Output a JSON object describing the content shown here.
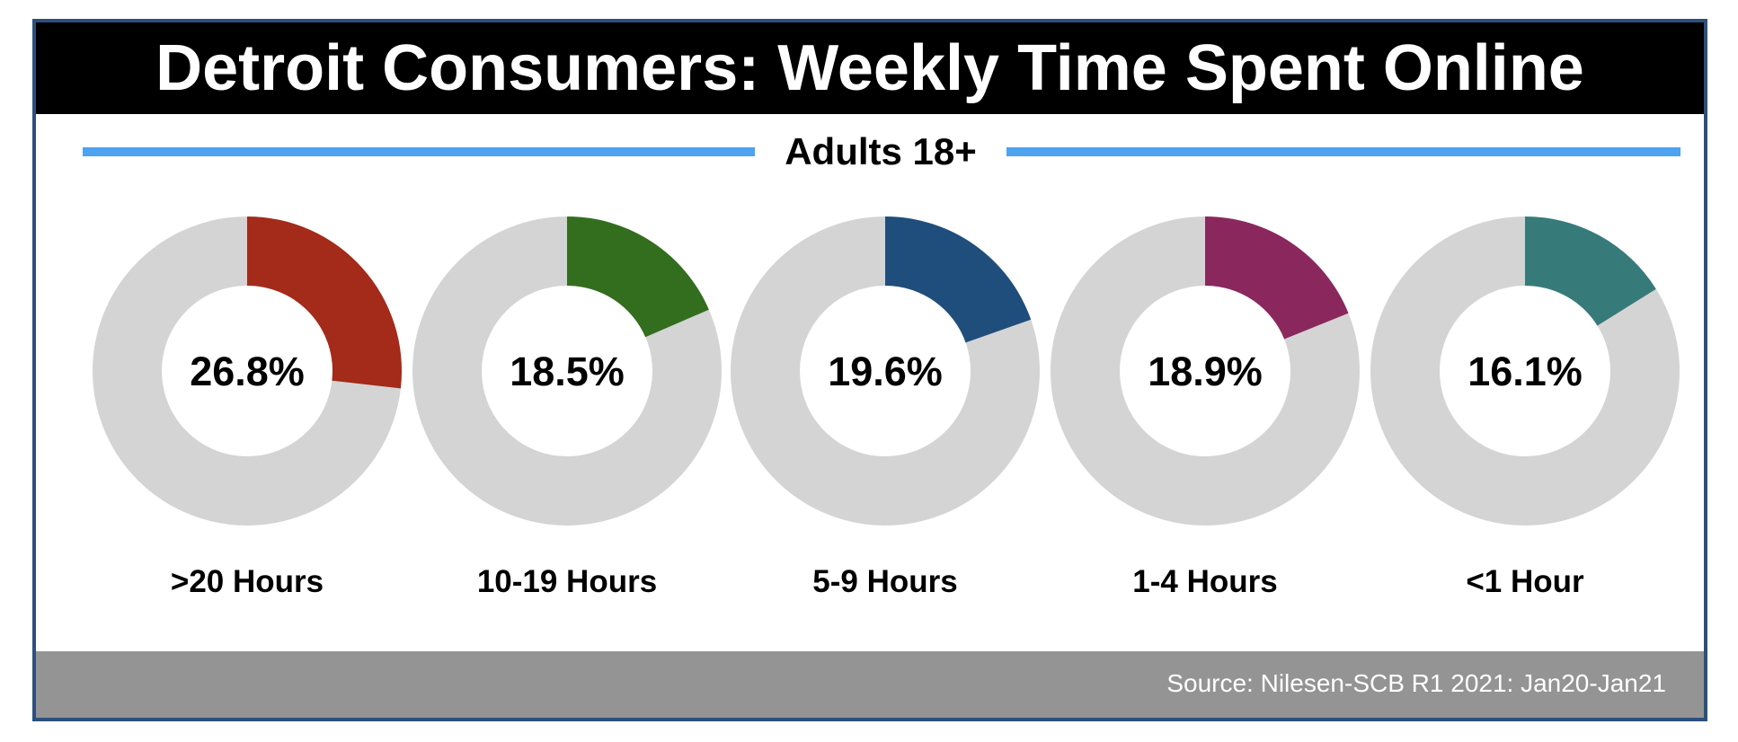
{
  "title": "Detroit Consumers: Weekly Time Spent Online",
  "subtitle": "Adults 18+",
  "source": "Source: Nilesen-SCB R1 2021: Jan20-Jan21",
  "colors": {
    "title_bg": "#000000",
    "accent_line": "#4da3ef",
    "donut_track": "#d4d4d4",
    "footer_bg": "#949494",
    "frame_border": "#2d4f7c"
  },
  "chart_data": {
    "type": "pie",
    "style": "donut",
    "title": "Detroit Consumers: Weekly Time Spent Online",
    "subtitle": "Adults 18+",
    "categories": [
      ">20 Hours",
      "10-19 Hours",
      "5-9 Hours",
      "1-4 Hours",
      "<1 Hour"
    ],
    "values": [
      26.8,
      18.5,
      19.6,
      18.9,
      16.1
    ],
    "value_labels": [
      "26.8%",
      "18.5%",
      "19.6%",
      "18.9%",
      "16.1%"
    ],
    "unit": "%",
    "series_colors": [
      "#a42a1a",
      "#336e1e",
      "#1f4e7c",
      "#8a285e",
      "#367b79"
    ],
    "legend": "none"
  }
}
